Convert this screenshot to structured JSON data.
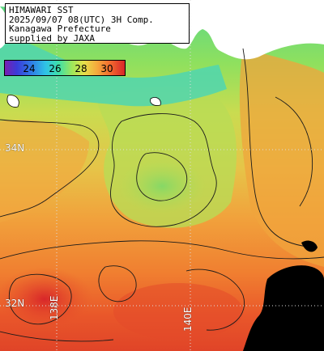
{
  "title": {
    "line1": "HIMAWARI SST",
    "line2": "2025/09/07 08(UTC) 3H Comp.",
    "line3": "Kanagawa Prefecture",
    "line4": "supplied by JAXA"
  },
  "colorbar": {
    "ticks": [
      "24",
      "26",
      "28",
      "30"
    ],
    "colors": [
      "#7a1fb0",
      "#3b3bd8",
      "#2f7be6",
      "#2fc3e6",
      "#3fe0a8",
      "#9ee65a",
      "#e6e04a",
      "#f5a83c",
      "#f26a2e",
      "#d8262a"
    ]
  },
  "grid_labels": {
    "lat_upper": "34N",
    "lat_lower": "32N",
    "lon_left": "138E",
    "lon_right": "140E"
  },
  "colors": {
    "land": "#ffffff",
    "no_data": "#000000",
    "gridline": "#dddddd"
  }
}
